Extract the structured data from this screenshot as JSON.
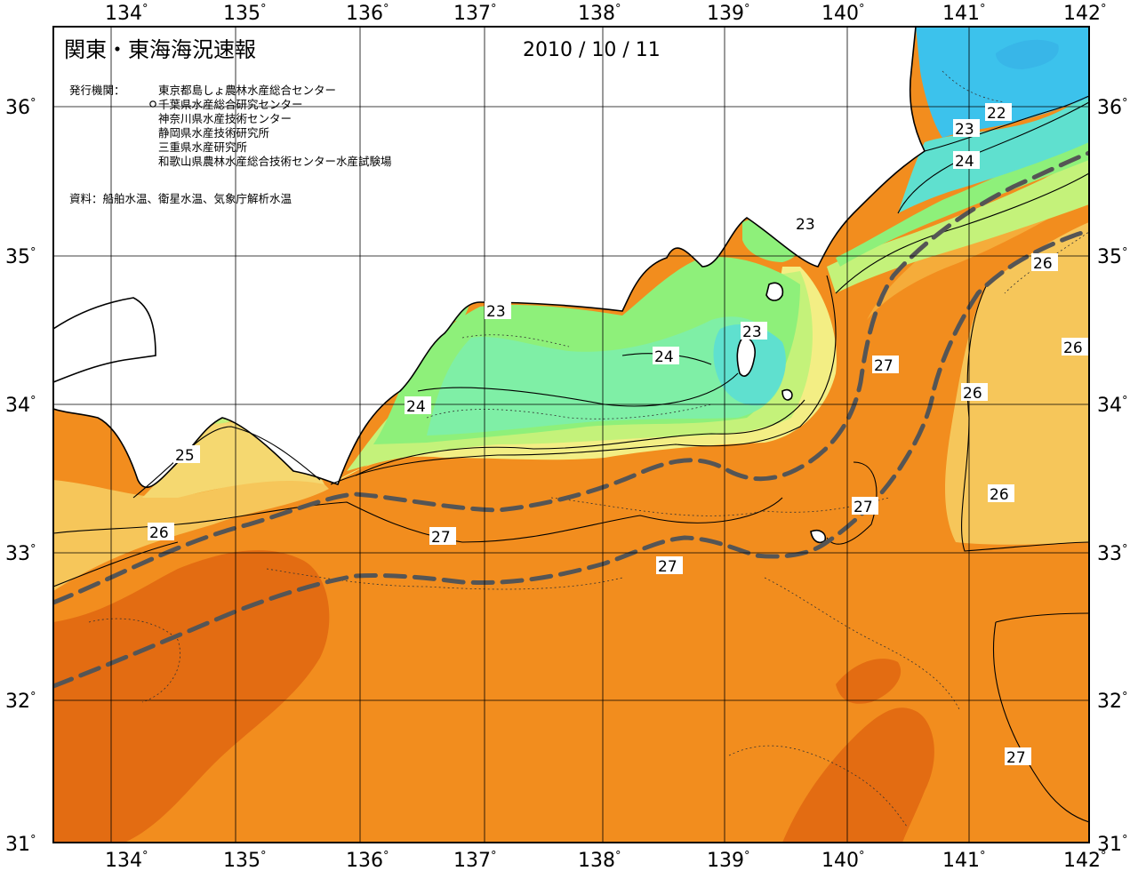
{
  "title": "関東・東海海況速報",
  "date": "2010 / 10 / 11",
  "issuers": {
    "label": "発行機関：",
    "orgs": [
      "東京都島しょ農林水産総合センター",
      "千葉県水産総合研究センター",
      "神奈川県水産技術センター",
      "静岡県水産技術研究所",
      "三重県水産研究所",
      "和歌山県農林水産総合技術センター水産試験場"
    ]
  },
  "source": "資料：船舶水温、衛星水温、気象庁解析水温",
  "longitudes": [
    "134",
    "135",
    "136",
    "137",
    "138",
    "139",
    "140",
    "141",
    "142"
  ],
  "latitudes": [
    "36",
    "35",
    "34",
    "33",
    "32",
    "31"
  ],
  "degree_symbol": "°",
  "contour_labels": [
    "22",
    "23",
    "24",
    "23",
    "23",
    "24",
    "23",
    "24",
    "25",
    "26",
    "27",
    "27",
    "27",
    "27",
    "26",
    "26",
    "26",
    "26",
    "27"
  ],
  "colors": {
    "t22": "#3cc2ec",
    "t22b": "#38b6e8",
    "t23": "#5fe0cf",
    "t23b": "#7fefa6",
    "t24": "#8ef07a",
    "t24b": "#c4f27a",
    "t25": "#f3ee84",
    "t25b": "#f5d870",
    "t26": "#f6c65a",
    "t26b": "#f5ac3a",
    "t27": "#f28d1e",
    "t27b": "#e36c12",
    "current": "#555555"
  }
}
